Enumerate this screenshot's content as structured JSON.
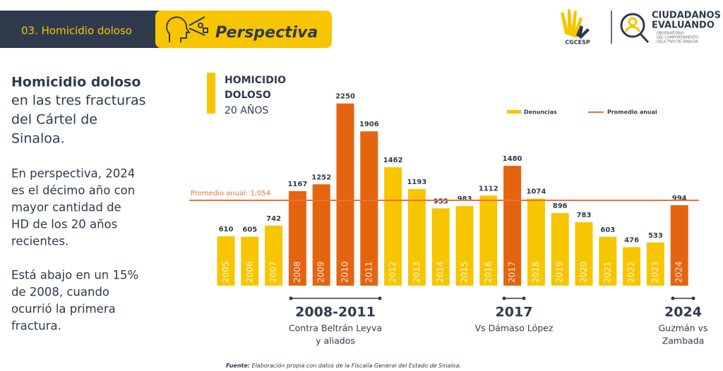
{
  "header": {
    "section": "03. Homicidio doloso",
    "tab": "Perspectiva"
  },
  "logos": {
    "left": "CGCESP",
    "right_lines": [
      "CIUDADANOS",
      "EVALUANDO"
    ],
    "right_sub": [
      "OBSERVATORIO",
      "DEL COMPORTAMIENTO",
      "DELICTIVO DE SINALOA"
    ]
  },
  "sidebar": {
    "heading_bold": "Homicidio doloso",
    "heading_lines": [
      "en las tres fracturas",
      "del Cártel de",
      "Sinaloa."
    ],
    "paragraph1": [
      "En perspectiva, 2024",
      "es el décimo año con",
      "mayor cantidad de",
      "HD de los 20 años",
      "recientes."
    ],
    "paragraph2": [
      "Está abajo en un 15%",
      "de 2008, cuando",
      "ocurrió la primera",
      "fractura."
    ]
  },
  "chart_data": {
    "type": "bar",
    "title_lines": [
      "HOMICIDIO",
      "DOLOSO"
    ],
    "subtitle": "20 AÑOS",
    "categories": [
      "2005",
      "2006",
      "2007",
      "2008",
      "2009",
      "2010",
      "2011",
      "2012",
      "2013",
      "2014",
      "2015",
      "2016",
      "2017",
      "2018",
      "2019",
      "2020",
      "2021",
      "2022",
      "2023",
      "2024"
    ],
    "series": [
      {
        "name": "Denuncias",
        "color": "#f7c600",
        "values": [
          610,
          605,
          742,
          1167,
          1252,
          2250,
          1906,
          1462,
          1193,
          955,
          983,
          1112,
          1480,
          1074,
          896,
          783,
          603,
          476,
          533,
          994
        ]
      }
    ],
    "bar_colors": [
      "#f7c600",
      "#f7c600",
      "#f7c600",
      "#e5640f",
      "#e5640f",
      "#e5640f",
      "#e5640f",
      "#f7c600",
      "#f7c600",
      "#f7c600",
      "#f7c600",
      "#f7c600",
      "#e5640f",
      "#f7c600",
      "#f7c600",
      "#f7c600",
      "#f7c600",
      "#f7c600",
      "#f7c600",
      "#e5640f"
    ],
    "ylim": [
      0,
      2500
    ],
    "reference_line": {
      "name": "Promedio anual",
      "value": 1054,
      "label": "Promedio anual: 1,054",
      "color": "#e8733a"
    },
    "periods": [
      {
        "title": "2008-2011",
        "lines": [
          "Contra Beltrán Leyva",
          "y aliados"
        ]
      },
      {
        "title": "2017",
        "lines": [
          "Vs Dámaso López"
        ]
      },
      {
        "title": "2024",
        "lines": [
          "Guzmán vs",
          "Zambada"
        ]
      }
    ]
  },
  "footer": {
    "label": "Fuente:",
    "text": "Elaboración propia con datos de la Fiscalía General del Estado de Sinaloa."
  }
}
